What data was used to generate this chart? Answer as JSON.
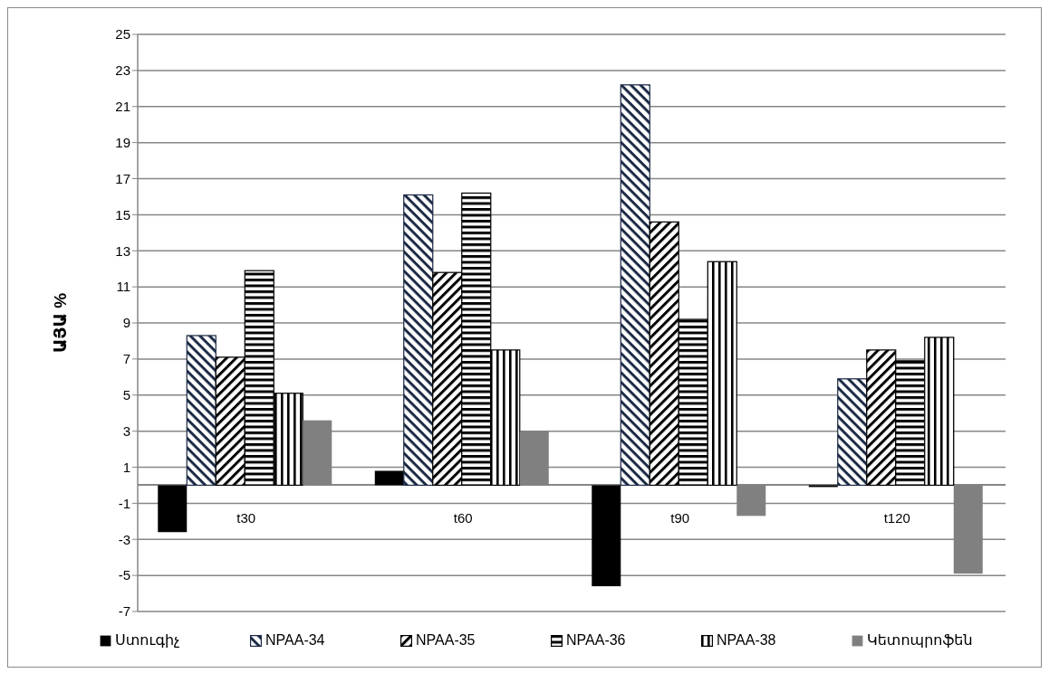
{
  "chart_data": {
    "type": "bar",
    "ylabel": "ԱՅԱ %",
    "categories": [
      "t30",
      "t60",
      "t90",
      "t120"
    ],
    "series": [
      {
        "name": "Ստուգիչ",
        "color": "#000000",
        "values": [
          -2.6,
          0.8,
          -5.6,
          -0.1
        ]
      },
      {
        "name": "NPAA-34",
        "color": "#1c2a45",
        "values": [
          8.3,
          16.1,
          22.2,
          5.9
        ]
      },
      {
        "name": "NPAA-35",
        "color": "#000000",
        "values": [
          7.1,
          11.8,
          14.6,
          7.5
        ]
      },
      {
        "name": "NPAA-36",
        "color": "#000000",
        "values": [
          11.9,
          16.2,
          9.2,
          6.9
        ]
      },
      {
        "name": "NPAA-38",
        "color": "#000000",
        "values": [
          5.1,
          7.5,
          12.4,
          8.2
        ]
      },
      {
        "name": "Կետոպրոֆեն",
        "color": "#808080",
        "values": [
          3.6,
          3.0,
          -1.7,
          -4.9
        ]
      }
    ],
    "ylim": [
      -7,
      25
    ],
    "yticks": [
      -7,
      -5,
      -3,
      -1,
      1,
      3,
      5,
      7,
      9,
      11,
      13,
      15,
      17,
      19,
      21,
      23,
      25
    ],
    "grid": "y",
    "legend": "bottom"
  }
}
